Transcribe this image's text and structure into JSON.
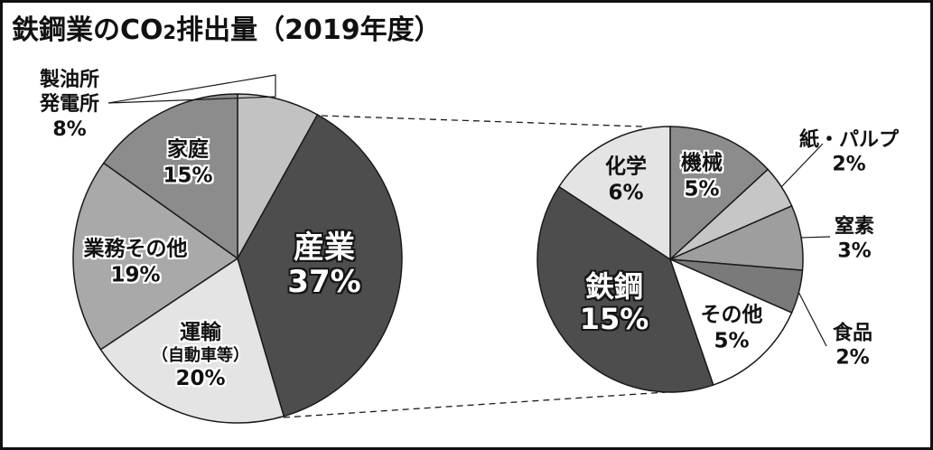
{
  "title": {
    "prefix": "鉄鋼業のCO",
    "subscript": "2",
    "suffix": "排出量（2019年度）"
  },
  "chart_data": [
    {
      "type": "pie",
      "name": "co2-emissions-by-sector",
      "unit": "%",
      "start_angle": "12-oclock",
      "direction": "clockwise",
      "slices": [
        {
          "id": "refinery-power",
          "label": "製油所発電所",
          "lines": [
            "製油所",
            "発電所"
          ],
          "value": 8,
          "pct": "8%",
          "color": "#c2c2c2"
        },
        {
          "id": "industry",
          "label": "産業",
          "value": 37,
          "pct": "37%",
          "color": "#4d4d4d"
        },
        {
          "id": "transport",
          "label": "運輸（自動車等）",
          "lines": [
            "運輸",
            "（自動車等）"
          ],
          "value": 20,
          "pct": "20%",
          "color": "#e4e4e4"
        },
        {
          "id": "business-other",
          "label": "業務その他",
          "value": 19,
          "pct": "19%",
          "color": "#a9a9a9"
        },
        {
          "id": "household",
          "label": "家庭",
          "value": 15,
          "pct": "15%",
          "color": "#8c8c8c"
        }
      ]
    },
    {
      "type": "pie",
      "name": "industry-sector-breakdown",
      "unit": "%",
      "start_angle": "12-oclock",
      "direction": "clockwise",
      "slices": [
        {
          "id": "machinery",
          "label": "機械",
          "value": 5,
          "pct": "5%",
          "color": "#8c8c8c"
        },
        {
          "id": "paper-pulp",
          "label": "紙・パルプ",
          "value": 2,
          "pct": "2%",
          "color": "#c6c6c6"
        },
        {
          "id": "nitrogen",
          "label": "窒素",
          "value": 3,
          "pct": "3%",
          "color": "#9e9e9e"
        },
        {
          "id": "food",
          "label": "食品",
          "value": 2,
          "pct": "2%",
          "color": "#7a7a7a"
        },
        {
          "id": "other",
          "label": "その他",
          "value": 5,
          "pct": "5%",
          "color": "#ffffff"
        },
        {
          "id": "steel",
          "label": "鉄鋼",
          "value": 15,
          "pct": "15%",
          "color": "#4d4d4d"
        },
        {
          "id": "chemical",
          "label": "化学",
          "value": 6,
          "pct": "6%",
          "color": "#e4e4e4"
        }
      ]
    }
  ],
  "colors": {
    "outline": "#1a1a1a",
    "background": "#ffffff",
    "text": "#111111"
  }
}
